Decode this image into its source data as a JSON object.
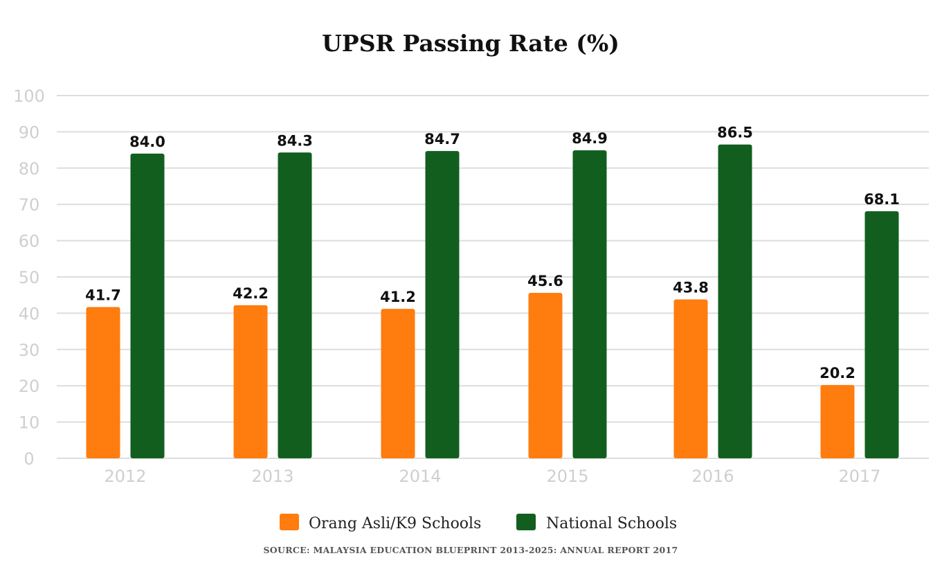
{
  "chart_data": {
    "type": "bar",
    "title": "UPSR Passing Rate (%)",
    "categories": [
      "2012",
      "2013",
      "2014",
      "2015",
      "2016",
      "2017"
    ],
    "series": [
      {
        "name": "Orang Asli/K9 Schools",
        "color": "#ff7c0f",
        "values": [
          41.7,
          42.2,
          41.2,
          45.6,
          43.8,
          20.2
        ],
        "labels": [
          "41.7",
          "42.2",
          "41.2",
          "45.6",
          "43.8",
          "20.2"
        ]
      },
      {
        "name": "National Schools",
        "color": "#125e1f",
        "values": [
          84.0,
          84.3,
          84.7,
          84.9,
          86.5,
          68.1
        ],
        "labels": [
          "84.0",
          "84.3",
          "84.7",
          "84.9",
          "86.5",
          "68.1"
        ]
      }
    ],
    "ylim": [
      0,
      100
    ],
    "yticks": [
      "0",
      "10",
      "20",
      "30",
      "40",
      "50",
      "60",
      "70",
      "80",
      "90",
      "100"
    ],
    "xlabel": "",
    "ylabel": "",
    "grid": true,
    "legend_position": "bottom-center",
    "source": "SOURCE: MALAYSIA EDUCATION BLUEPRINT 2013-2025: ANNUAL REPORT 2017"
  }
}
